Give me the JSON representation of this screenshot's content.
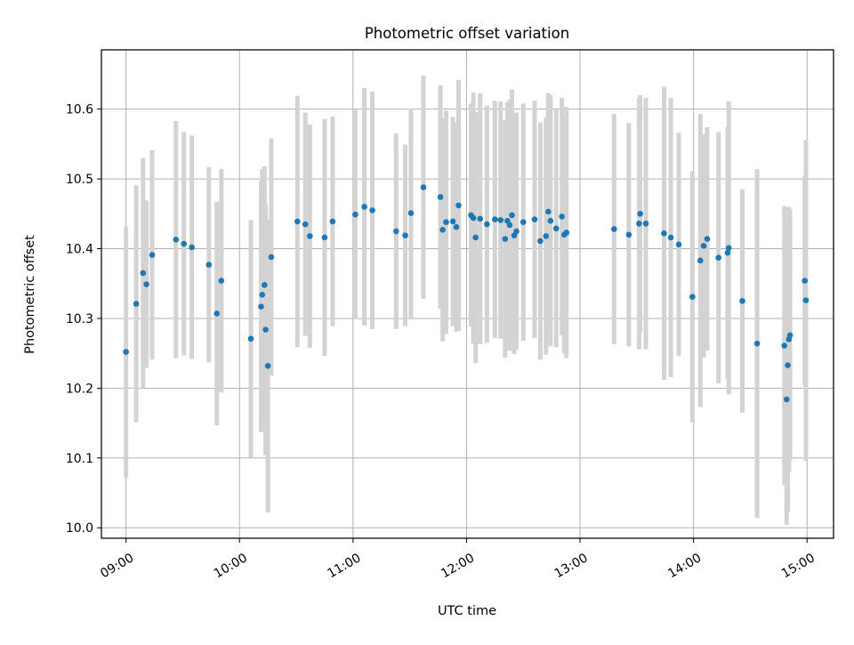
{
  "chart_data": {
    "type": "scatter",
    "title": "Photometric offset variation",
    "xlabel": "UTC time",
    "ylabel": "Photometric offset",
    "x_unit": "hours UTC (decimal)",
    "xlim": [
      "08:47",
      "15:14"
    ],
    "ylim": [
      9.985,
      10.685
    ],
    "xticks": [
      "09:00",
      "10:00",
      "11:00",
      "12:00",
      "13:00",
      "14:00",
      "15:00"
    ],
    "yticks": [
      "10.0",
      "10.1",
      "10.2",
      "10.3",
      "10.4",
      "10.5",
      "10.6"
    ],
    "grid": true,
    "legend": "none",
    "colors": {
      "points": "#1f77b4",
      "errorbars": "#d3d3d3",
      "grid": "#b0b0b0"
    },
    "series": [
      {
        "x": [
          9.0,
          9.09,
          9.15,
          9.18,
          9.23,
          9.44,
          9.51,
          9.58,
          9.73,
          9.8,
          9.84,
          10.1,
          10.19,
          10.2,
          10.22,
          10.23,
          10.25,
          10.28,
          10.51,
          10.58,
          10.62,
          10.75,
          10.82,
          11.02,
          11.1,
          11.17,
          11.38,
          11.46,
          11.51,
          11.62,
          11.77,
          11.79,
          11.82,
          11.88,
          11.91,
          11.93,
          12.04,
          12.06,
          12.08,
          12.12,
          12.18,
          12.25,
          12.3,
          12.34,
          12.36,
          12.38,
          12.4,
          12.42,
          12.44,
          12.5,
          12.6,
          12.65,
          12.7,
          12.72,
          12.74,
          12.79,
          12.84,
          12.86,
          12.88,
          13.3,
          13.43,
          13.52,
          13.53,
          13.58,
          13.74,
          13.8,
          13.87,
          13.99,
          14.06,
          14.09,
          14.12,
          14.22,
          14.3,
          14.31,
          14.43,
          14.56,
          14.8,
          14.82,
          14.83,
          14.84,
          14.85,
          14.98,
          14.99
        ],
        "y": [
          10.252,
          10.321,
          10.365,
          10.349,
          10.391,
          10.413,
          10.407,
          10.402,
          10.377,
          10.307,
          10.354,
          10.271,
          10.317,
          10.334,
          10.348,
          10.284,
          10.232,
          10.388,
          10.439,
          10.435,
          10.418,
          10.416,
          10.439,
          10.449,
          10.46,
          10.455,
          10.425,
          10.419,
          10.451,
          10.488,
          10.474,
          10.427,
          10.438,
          10.439,
          10.431,
          10.462,
          10.448,
          10.444,
          10.416,
          10.443,
          10.435,
          10.442,
          10.441,
          10.414,
          10.44,
          10.434,
          10.448,
          10.419,
          10.425,
          10.438,
          10.442,
          10.411,
          10.418,
          10.453,
          10.44,
          10.429,
          10.446,
          10.42,
          10.423,
          10.428,
          10.42,
          10.436,
          10.45,
          10.436,
          10.422,
          10.416,
          10.406,
          10.331,
          10.383,
          10.404,
          10.414,
          10.387,
          10.394,
          10.401,
          10.325,
          10.264,
          10.261,
          10.184,
          10.233,
          10.27,
          10.276,
          10.354,
          10.326
        ],
        "err": [
          0.18,
          0.17,
          0.165,
          0.12,
          0.15,
          0.17,
          0.16,
          0.16,
          0.14,
          0.16,
          0.16,
          0.17,
          0.18,
          0.18,
          0.17,
          0.18,
          0.21,
          0.17,
          0.18,
          0.16,
          0.16,
          0.17,
          0.15,
          0.15,
          0.17,
          0.17,
          0.14,
          0.13,
          0.15,
          0.16,
          0.16,
          0.16,
          0.16,
          0.15,
          0.15,
          0.18,
          0.16,
          0.18,
          0.18,
          0.18,
          0.17,
          0.17,
          0.17,
          0.17,
          0.17,
          0.18,
          0.18,
          0.17,
          0.17,
          0.17,
          0.17,
          0.17,
          0.17,
          0.17,
          0.18,
          0.17,
          0.17,
          0.17,
          0.18,
          0.165,
          0.16,
          0.18,
          0.17,
          0.18,
          0.21,
          0.2,
          0.16,
          0.18,
          0.21,
          0.16,
          0.16,
          0.18,
          0.18,
          0.21,
          0.16,
          0.25,
          0.2,
          0.18,
          0.21,
          0.19,
          0.18,
          0.15,
          0.23
        ]
      }
    ]
  }
}
